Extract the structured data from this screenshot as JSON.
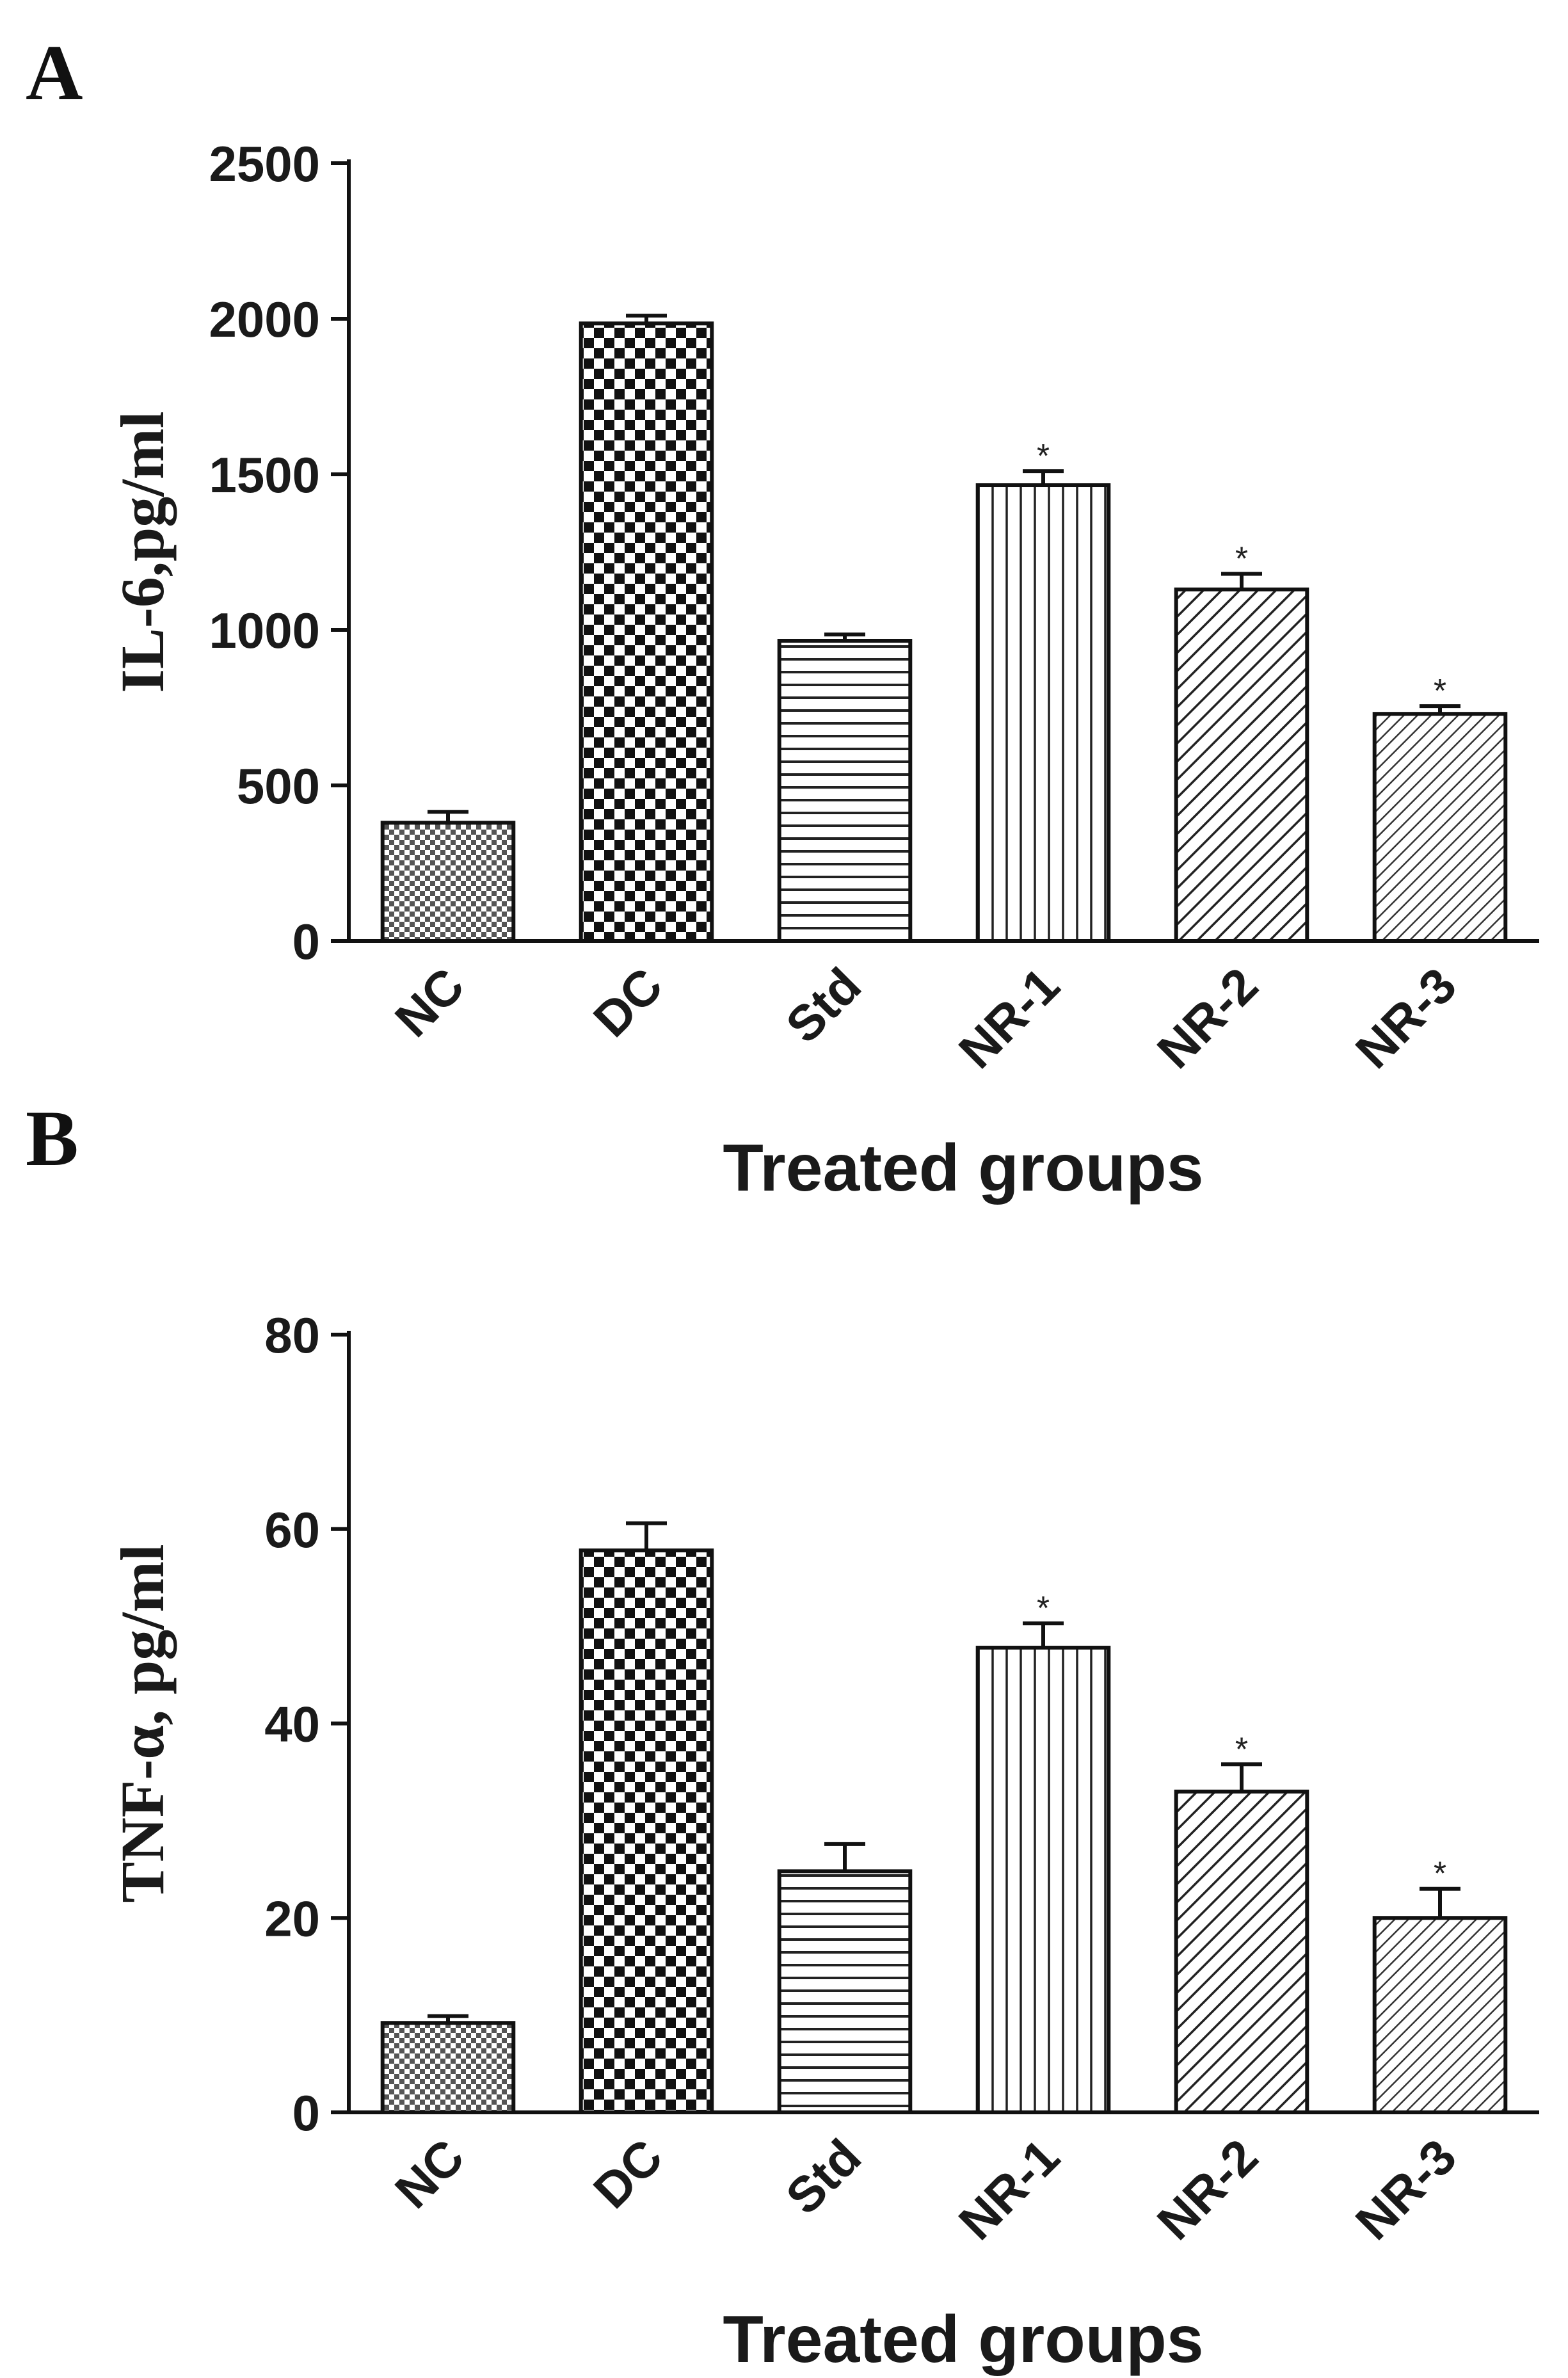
{
  "chart_data": [
    {
      "panel": "A",
      "type": "bar",
      "title": "",
      "xlabel": "Treated groups",
      "ylabel": "IL-6,pg/ml",
      "ylim": [
        0,
        2500
      ],
      "yticks": [
        0,
        500,
        1000,
        1500,
        2000,
        2500
      ],
      "categories": [
        "NC",
        "DC",
        "Std",
        "NR-1",
        "NR-2",
        "NR-3"
      ],
      "values": [
        380,
        1985,
        965,
        1465,
        1130,
        730
      ],
      "errors": [
        35,
        25,
        20,
        45,
        50,
        25
      ],
      "significance": [
        "",
        "",
        "",
        "*",
        "*",
        "*"
      ],
      "patterns": [
        "fine-check",
        "checker",
        "horizontal",
        "vertical",
        "diagonal",
        "diagonal-fine"
      ]
    },
    {
      "panel": "B",
      "type": "bar",
      "title": "",
      "xlabel": "Treated groups",
      "ylabel": "TNF-α, pg/ml",
      "ylim": [
        0,
        80
      ],
      "yticks": [
        0,
        20,
        40,
        60,
        80
      ],
      "categories": [
        "NC",
        "DC",
        "Std",
        "NR-1",
        "NR-2",
        "NR-3"
      ],
      "values": [
        9.2,
        57.8,
        24.8,
        47.8,
        33.0,
        20.0
      ],
      "errors": [
        0.7,
        2.8,
        2.8,
        2.5,
        2.8,
        3.0
      ],
      "significance": [
        "",
        "",
        "",
        "*",
        "*",
        "*"
      ],
      "patterns": [
        "fine-check",
        "checker",
        "horizontal",
        "vertical",
        "diagonal",
        "diagonal-fine"
      ]
    }
  ]
}
